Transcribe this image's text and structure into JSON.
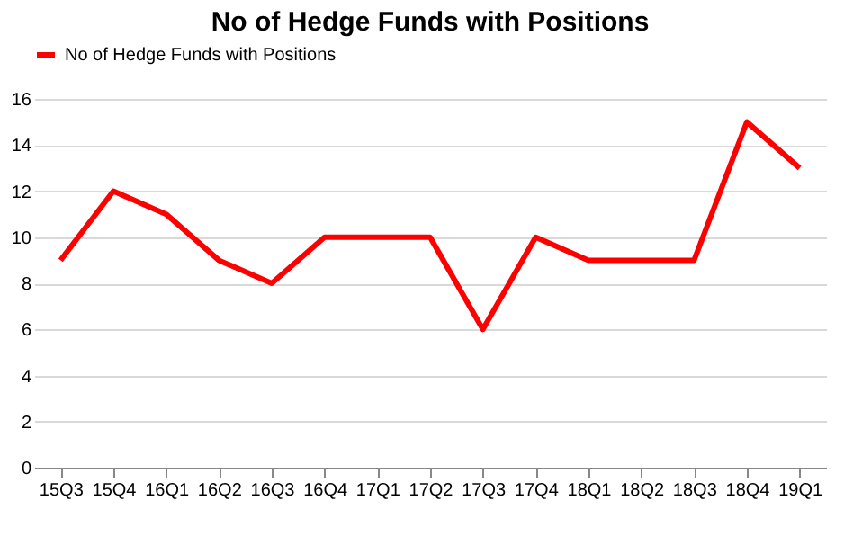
{
  "chart_data": {
    "type": "line",
    "title": "No of Hedge Funds with Positions",
    "categories": [
      "15Q3",
      "15Q4",
      "16Q1",
      "16Q2",
      "16Q3",
      "16Q4",
      "17Q1",
      "17Q2",
      "17Q3",
      "17Q4",
      "18Q1",
      "18Q2",
      "18Q3",
      "18Q4",
      "19Q1"
    ],
    "series": [
      {
        "name": "No of Hedge Funds with Positions",
        "color": "#ff0000",
        "values": [
          9,
          12,
          11,
          9,
          8,
          10,
          10,
          10,
          6,
          10,
          9,
          9,
          9,
          15,
          13
        ]
      }
    ],
    "ylim": [
      0,
      16
    ],
    "yticks": [
      0,
      2,
      4,
      6,
      8,
      10,
      12,
      14,
      16
    ],
    "grid": "y",
    "legend": "top",
    "marker": "none",
    "line_style": "solid"
  }
}
